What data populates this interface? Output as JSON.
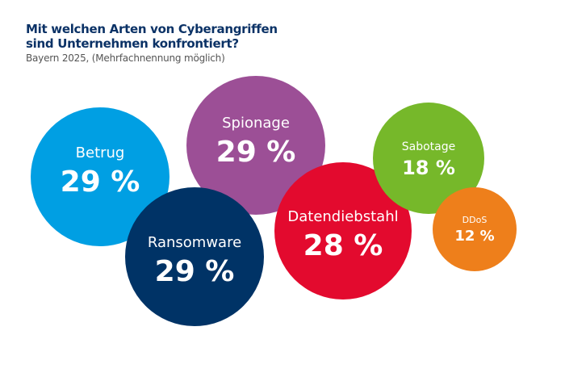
{
  "chart_data": {
    "type": "bubble",
    "title": "Mit welchen Arten von Cyberangriffen sind Unternehmen konfrontiert?",
    "subtitle": "Bayern 2025, (Mehrfachnennung möglich)",
    "unit": "%",
    "items": [
      {
        "label": "Betrug",
        "value": 29,
        "display": "29 %",
        "color": "#009fe3"
      },
      {
        "label": "Spionage",
        "value": 29,
        "display": "29 %",
        "color": "#9c4f96"
      },
      {
        "label": "Ransomware",
        "value": 29,
        "display": "29 %",
        "color": "#003366"
      },
      {
        "label": "Datendiebstahl",
        "value": 28,
        "display": "28 %",
        "color": "#e30a2e"
      },
      {
        "label": "Sabotage",
        "value": 18,
        "display": "18 %",
        "color": "#76b82a"
      },
      {
        "label": "DDoS",
        "value": 12,
        "display": "12 %",
        "color": "#ee7f1b"
      }
    ]
  }
}
